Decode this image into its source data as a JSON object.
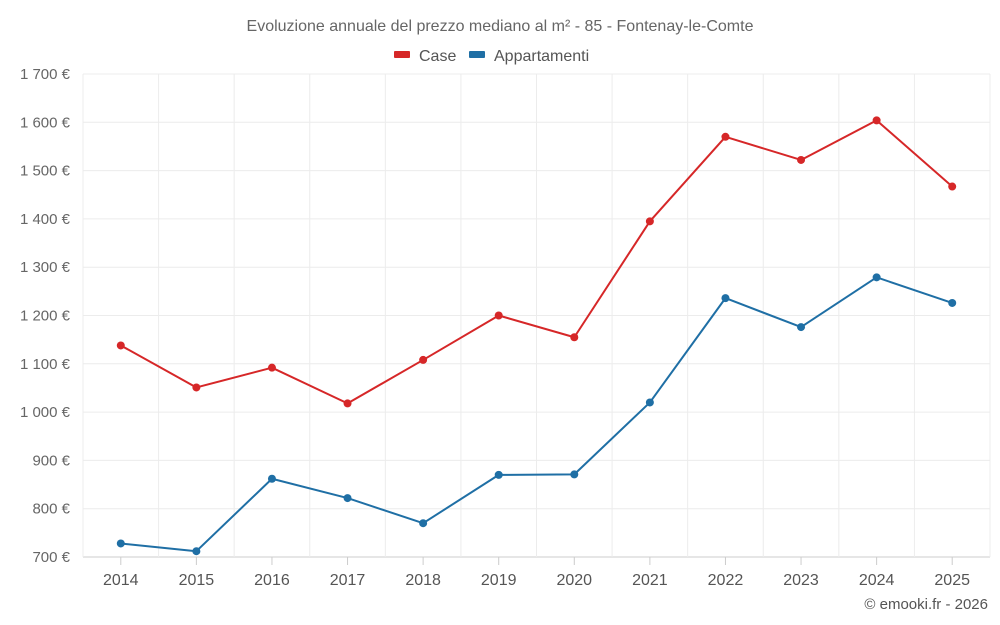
{
  "chart_data": {
    "type": "line",
    "title": "Evoluzione annuale del prezzo mediano al m² - 85 - Fontenay-le-Comte",
    "categories": [
      "2014",
      "2015",
      "2016",
      "2017",
      "2018",
      "2019",
      "2020",
      "2021",
      "2022",
      "2023",
      "2024",
      "2025"
    ],
    "series": [
      {
        "name": "Case",
        "color": "#d62728",
        "values": [
          1138,
          1051,
          1092,
          1018,
          1108,
          1200,
          1155,
          1395,
          1570,
          1522,
          1604,
          1467
        ]
      },
      {
        "name": "Appartamenti",
        "color": "#1f6fa5",
        "values": [
          728,
          712,
          862,
          822,
          770,
          870,
          871,
          1020,
          1236,
          1176,
          1279,
          1226
        ]
      }
    ],
    "ylim": [
      700,
      1700
    ],
    "yticks": [
      700,
      800,
      900,
      1000,
      1100,
      1200,
      1300,
      1400,
      1500,
      1600,
      1700
    ],
    "ytick_labels": [
      "700 €",
      "800 €",
      "900 €",
      "1 000 €",
      "1 100 €",
      "1 200 €",
      "1 300 €",
      "1 400 €",
      "1 500 €",
      "1 600 €",
      "1 700 €"
    ],
    "xlabel": "",
    "ylabel": "",
    "grid": true,
    "legend": "top-center"
  },
  "credit": "© emooki.fr - 2026"
}
